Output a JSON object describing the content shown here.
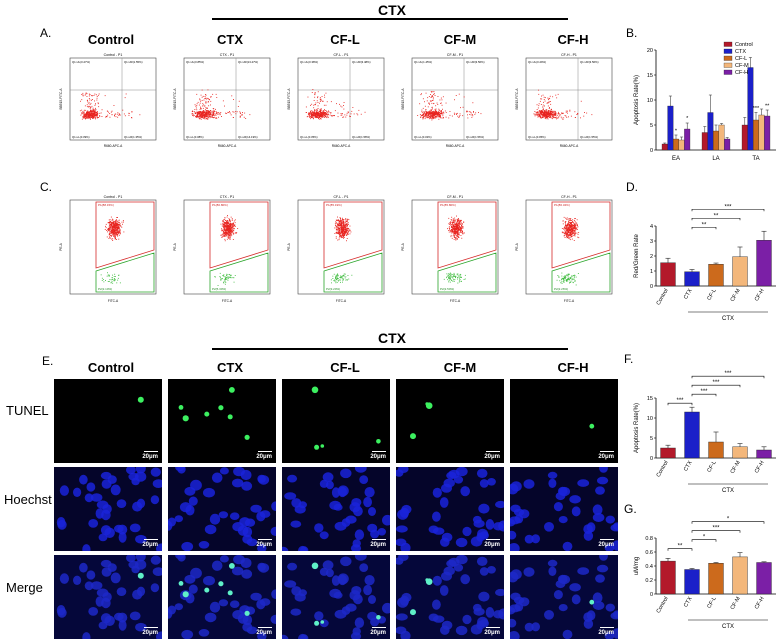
{
  "panels": {
    "A": "A.",
    "B": "B.",
    "C": "C.",
    "D": "D.",
    "E": "E.",
    "F": "F.",
    "G": "G."
  },
  "group_header": "CTX",
  "groups": [
    "Control",
    "CTX",
    "CF-L",
    "CF-M",
    "CF-H"
  ],
  "panel_a_plot_titles": [
    "Control - P1",
    "CTX - P1",
    "CF-L - P1",
    "CF-M - P1",
    "CF-H - P1"
  ],
  "panel_a_quadrants": [
    [
      "Q1-UL(0.27%)",
      "Q1-UR(1.55%)",
      "Q1-LL(0.39%)",
      "Q1-LR(1.35%)"
    ],
    [
      "Q1-UL(0.85%)",
      "Q1-UR(13.47%)",
      "Q1-LL(0.38%)",
      "Q1-LR(14.19%)"
    ],
    [
      "Q1-UL(0.38%)",
      "Q1-UR(3.48%)",
      "Q1-LL(0.35%)",
      "Q1-LR(1.58%)"
    ],
    [
      "Q1-UL(1.45%)",
      "Q1-UR(3.56%)",
      "Q1-LL(0.32%)",
      "Q1-LR(1.56%)"
    ],
    [
      "Q1-UL(0.29%)",
      "Q1-UR(3.56%)",
      "Q1-LL(0.05%)",
      "Q1-LR(1.55%)"
    ]
  ],
  "panel_a_axes": {
    "x": "R660-APC-A",
    "y": "BB515-FITC-A"
  },
  "panel_c_plot_titles": [
    "Control - P1",
    "CTX - P1",
    "CF-L - P1",
    "CF-M - P1",
    "CF-H - P1"
  ],
  "panel_c_gates": [
    [
      "P1(88.15%)",
      "P2(2.10%)"
    ],
    [
      "P1(80.80%)",
      "P2(5.30%)"
    ],
    [
      "P1(85.19%)",
      "P2(3.20%)"
    ],
    [
      "P1(85.80%)",
      "P2(2.50%)"
    ],
    [
      "P1(86.34%)",
      "P2(2.26%)"
    ]
  ],
  "panel_c_axes": {
    "x": "FITC-A",
    "y": "PE-A"
  },
  "microscopy_rows": [
    "TUNEL",
    "Hoechst",
    "Merge"
  ],
  "scale_bar": "20μm",
  "colors": {
    "Control": "#b3192a",
    "CTX": "#1b20c9",
    "CF-L": "#cc6a1c",
    "CF-M": "#f3b77b",
    "CF-H": "#7b1fa6"
  },
  "chart_data": [
    {
      "id": "B",
      "type": "bar",
      "ylabel": "Apoptosis Rate(%)",
      "categories": [
        "EA",
        "LA",
        "TA"
      ],
      "ylim": [
        0,
        20
      ],
      "yticks": [
        0,
        5,
        10,
        15,
        20
      ],
      "legend_position": "top-right",
      "series": [
        {
          "name": "Control",
          "values": [
            1.2,
            3.5,
            5.0
          ],
          "errors": [
            0.2,
            1.2,
            1.5
          ]
        },
        {
          "name": "CTX",
          "values": [
            8.8,
            7.5,
            16.5
          ],
          "errors": [
            2.0,
            3.5,
            2.0
          ]
        },
        {
          "name": "CF-L",
          "values": [
            2.2,
            3.8,
            6.0
          ],
          "errors": [
            0.8,
            1.2,
            1.5
          ]
        },
        {
          "name": "CF-M",
          "values": [
            2.0,
            5.0,
            7.0
          ],
          "errors": [
            0.6,
            0.3,
            1.2
          ]
        },
        {
          "name": "CF-H",
          "values": [
            4.2,
            2.2,
            6.8
          ],
          "errors": [
            1.2,
            0.3,
            1.2
          ]
        }
      ],
      "annotations": [
        "*",
        "*",
        "***",
        "**"
      ]
    },
    {
      "id": "D",
      "type": "bar",
      "ylabel": "Red/Green Rate",
      "categories": [
        "Control",
        "CTX",
        "CF-L",
        "CF-M",
        "CF-H"
      ],
      "values": [
        1.55,
        0.95,
        1.45,
        1.95,
        3.05
      ],
      "errors": [
        0.3,
        0.15,
        0.08,
        0.65,
        0.6
      ],
      "ylim": [
        0,
        4
      ],
      "yticks": [
        0,
        1,
        2,
        3,
        4
      ],
      "group_label": "CTX",
      "comparisons": [
        {
          "from": "CTX",
          "to": "CF-L",
          "label": "**"
        },
        {
          "from": "CTX",
          "to": "CF-M",
          "label": "**"
        },
        {
          "from": "CTX",
          "to": "CF-H",
          "label": "***"
        }
      ]
    },
    {
      "id": "F",
      "type": "bar",
      "ylabel": "Apoptosis Rate(%)",
      "categories": [
        "Control",
        "CTX",
        "CF-L",
        "CF-M",
        "CF-H"
      ],
      "values": [
        2.5,
        11.5,
        4.0,
        2.8,
        2.0
      ],
      "errors": [
        0.7,
        1.2,
        2.5,
        0.8,
        0.8
      ],
      "ylim": [
        0,
        15
      ],
      "yticks": [
        0,
        5,
        10,
        15
      ],
      "group_label": "CTX",
      "comparisons": [
        {
          "from": "Control",
          "to": "CTX",
          "label": "***"
        },
        {
          "from": "CTX",
          "to": "CF-L",
          "label": "***"
        },
        {
          "from": "CTX",
          "to": "CF-M",
          "label": "***"
        },
        {
          "from": "CTX",
          "to": "CF-H",
          "label": "***"
        }
      ]
    },
    {
      "id": "G",
      "type": "bar",
      "ylabel": "uM/mg",
      "categories": [
        "Control",
        "CTX",
        "CF-L",
        "CF-M",
        "CF-H"
      ],
      "values": [
        0.47,
        0.35,
        0.44,
        0.53,
        0.45
      ],
      "errors": [
        0.04,
        0.015,
        0.01,
        0.06,
        0.01
      ],
      "ylim": [
        0,
        0.8
      ],
      "yticks": [
        0.0,
        0.2,
        0.4,
        0.6,
        0.8
      ],
      "group_label": "CTX",
      "comparisons": [
        {
          "from": "Control",
          "to": "CTX",
          "label": "**"
        },
        {
          "from": "CTX",
          "to": "CF-L",
          "label": "*"
        },
        {
          "from": "CTX",
          "to": "CF-M",
          "label": "***"
        },
        {
          "from": "CTX",
          "to": "CF-H",
          "label": "*"
        }
      ]
    }
  ]
}
